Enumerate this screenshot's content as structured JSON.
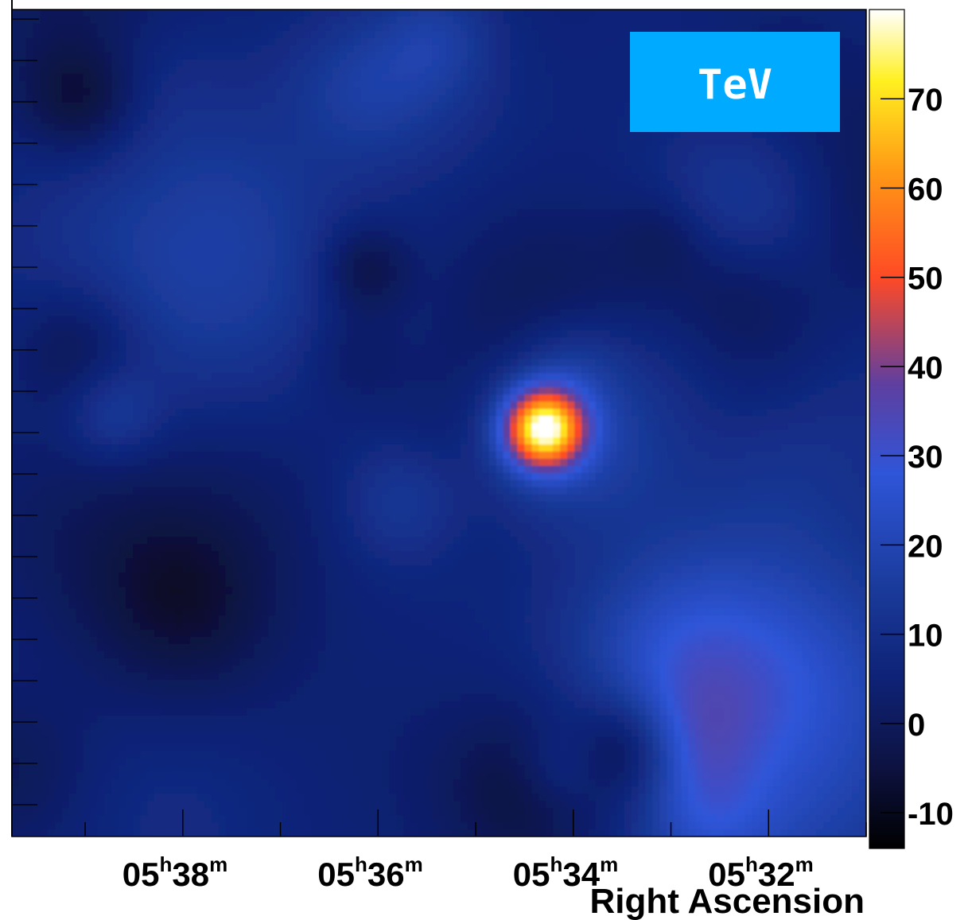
{
  "chart_data": {
    "type": "heatmap",
    "title": "",
    "xlabel": "Right Ascension",
    "ylabel": "",
    "badge": "TeV",
    "x_ticks": [
      {
        "ra_min": 38,
        "label": "05h38m"
      },
      {
        "ra_min": 36,
        "label": "05h36m"
      },
      {
        "ra_min": 34,
        "label": "05h34m"
      },
      {
        "ra_min": 32,
        "label": "05h32m"
      }
    ],
    "x_range_min": [
      39.75,
      31.0
    ],
    "colorbar": {
      "range": [
        -14,
        80
      ],
      "ticks": [
        -10,
        0,
        10,
        20,
        30,
        40,
        50,
        60,
        70
      ],
      "stops": [
        {
          "v": -14,
          "c": "#000000"
        },
        {
          "v": -5,
          "c": "#0d1240"
        },
        {
          "v": 5,
          "c": "#0e2276"
        },
        {
          "v": 15,
          "c": "#1a3a9a"
        },
        {
          "v": 28,
          "c": "#2f55d8"
        },
        {
          "v": 38,
          "c": "#5e3fa0"
        },
        {
          "v": 50,
          "c": "#ff4a25"
        },
        {
          "v": 62,
          "c": "#ff9a15"
        },
        {
          "v": 72,
          "c": "#fff020"
        },
        {
          "v": 80,
          "c": "#ffffff"
        }
      ]
    },
    "source": {
      "ra_min": 34.3,
      "peak": 78,
      "background": 5
    }
  },
  "colors": {
    "badge_bg": "#00aaff",
    "badge_text": "#ffffff"
  }
}
